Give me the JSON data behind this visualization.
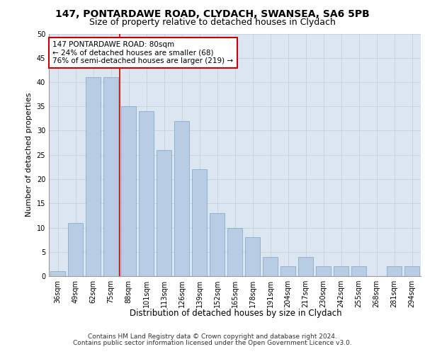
{
  "title1": "147, PONTARDAWE ROAD, CLYDACH, SWANSEA, SA6 5PB",
  "title2": "Size of property relative to detached houses in Clydach",
  "xlabel": "Distribution of detached houses by size in Clydach",
  "ylabel": "Number of detached properties",
  "categories": [
    "36sqm",
    "49sqm",
    "62sqm",
    "75sqm",
    "88sqm",
    "101sqm",
    "113sqm",
    "126sqm",
    "139sqm",
    "152sqm",
    "165sqm",
    "178sqm",
    "191sqm",
    "204sqm",
    "217sqm",
    "230sqm",
    "242sqm",
    "255sqm",
    "268sqm",
    "281sqm",
    "294sqm"
  ],
  "values": [
    1,
    11,
    41,
    41,
    35,
    34,
    26,
    32,
    22,
    13,
    10,
    8,
    4,
    2,
    4,
    2,
    2,
    2,
    0,
    2,
    2
  ],
  "bar_color": "#b8cce4",
  "bar_edgecolor": "#7aa4c8",
  "bar_linewidth": 0.5,
  "red_line_x": 3.5,
  "red_line_color": "#cc0000",
  "annotation_line1": "147 PONTARDAWE ROAD: 80sqm",
  "annotation_line2": "← 24% of detached houses are smaller (68)",
  "annotation_line3": "76% of semi-detached houses are larger (219) →",
  "annotation_box_color": "#ffffff",
  "annotation_box_edgecolor": "#cc0000",
  "ylim": [
    0,
    50
  ],
  "yticks": [
    0,
    5,
    10,
    15,
    20,
    25,
    30,
    35,
    40,
    45,
    50
  ],
  "background_color": "#dce6f0",
  "footer1": "Contains HM Land Registry data © Crown copyright and database right 2024.",
  "footer2": "Contains public sector information licensed under the Open Government Licence v3.0.",
  "title1_fontsize": 10,
  "title2_fontsize": 9,
  "xlabel_fontsize": 8.5,
  "ylabel_fontsize": 8,
  "tick_fontsize": 7,
  "annotation_fontsize": 7.5,
  "footer_fontsize": 6.5
}
